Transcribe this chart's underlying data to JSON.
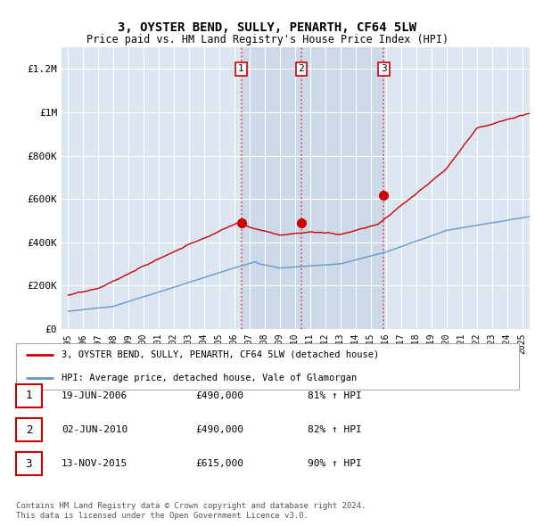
{
  "title": "3, OYSTER BEND, SULLY, PENARTH, CF64 5LW",
  "subtitle": "Price paid vs. HM Land Registry's House Price Index (HPI)",
  "background_color": "#ffffff",
  "plot_bg_color": "#dce6f0",
  "grid_color": "#ffffff",
  "ylim": [
    0,
    1300000
  ],
  "yticks": [
    0,
    200000,
    400000,
    600000,
    800000,
    1000000,
    1200000
  ],
  "ytick_labels": [
    "£0",
    "£200K",
    "£400K",
    "£600K",
    "£800K",
    "£1M",
    "£1.2M"
  ],
  "sale_t": [
    2006.46,
    2010.42,
    2015.87
  ],
  "sale_prices": [
    490000,
    490000,
    615000
  ],
  "sale_labels": [
    "1",
    "2",
    "3"
  ],
  "vline_color": "#dd4444",
  "vline_style": ":",
  "shade_color": "#ccd9e8",
  "legend_label_red": "3, OYSTER BEND, SULLY, PENARTH, CF64 5LW (detached house)",
  "legend_label_blue": "HPI: Average price, detached house, Vale of Glamorgan",
  "table_data": [
    [
      "1",
      "19-JUN-2006",
      "£490,000",
      "81% ↑ HPI"
    ],
    [
      "2",
      "02-JUN-2010",
      "£490,000",
      "82% ↑ HPI"
    ],
    [
      "3",
      "13-NOV-2015",
      "£615,000",
      "90% ↑ HPI"
    ]
  ],
  "footnote": "Contains HM Land Registry data © Crown copyright and database right 2024.\nThis data is licensed under the Open Government Licence v3.0.",
  "red_line_color": "#cc0000",
  "blue_line_color": "#6699cc",
  "xlim_left": 1994.6,
  "xlim_right": 2025.5
}
